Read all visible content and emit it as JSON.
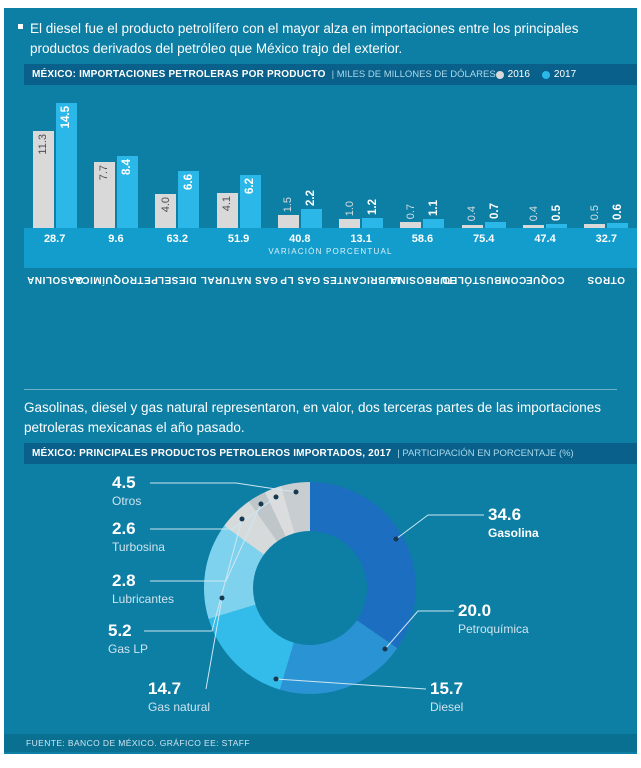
{
  "page": {
    "background": "#0d7ea4",
    "header_bar_color": "#09608a",
    "footer": "FUENTE: BANCO DE MÉXICO. GRÁFICO EE: STAFF"
  },
  "sections": [
    {
      "intro": "El diesel fue el producto petrolífero con el mayor alza en importaciones entre los principales productos derivados del petróleo que México trajo del exterior."
    },
    {
      "intro": "Gasolinas, diesel y gas natural representaron, en valor, dos terceras partes de las importaciones petroleras mexicanas el año pasado."
    }
  ],
  "chart_data": [
    {
      "type": "bar",
      "title": "MÉXICO: IMPORTACIONES PETROLERAS POR PRODUCTO",
      "units": "| MILES DE MILLONES DE DÓLARES",
      "legend_position": "top-right",
      "legend": [
        {
          "label": "2016",
          "color": "#d9d9d9"
        },
        {
          "label": "2017",
          "color": "#2bb7e8"
        }
      ],
      "categories": [
        "GASOLINA",
        "PETROQUÍMICA",
        "DIESEL",
        "GAS NATURAL",
        "GAS LP",
        "LUBRICANTES",
        "TURBOSINA",
        "COMBUSTÓLEO",
        "COQUE",
        "OTROS"
      ],
      "series": [
        {
          "name": "2016",
          "color": "#d9d9d9",
          "values": [
            11.3,
            7.7,
            4.0,
            4.1,
            1.5,
            1.0,
            0.7,
            0.4,
            0.4,
            0.5
          ],
          "labels": [
            "11.3",
            "7.7",
            "4.0",
            "4.1",
            "1.5",
            "1.0",
            "0.7",
            "0.4",
            "0.4",
            "0.5"
          ]
        },
        {
          "name": "2017",
          "color": "#2bb7e8",
          "values": [
            14.5,
            8.4,
            6.6,
            6.2,
            2.2,
            1.2,
            1.1,
            0.7,
            0.5,
            0.6
          ],
          "labels": [
            "14.5",
            "8.4",
            "6.6",
            "6.2",
            "2.2",
            "1.2",
            "1.1",
            "0.7",
            "0.5",
            "0.6"
          ]
        }
      ],
      "variation_row": {
        "caption": "VARIACIÓN PORCENTUAL",
        "values": [
          28.7,
          9.6,
          63.2,
          51.9,
          40.8,
          13.1,
          58.6,
          75.4,
          47.4,
          32.7
        ],
        "labels": [
          "28.7",
          "9.6",
          "63.2",
          "51.9",
          "40.8",
          "13.1",
          "58.6",
          "75.4",
          "47.4",
          "32.7"
        ]
      },
      "ylim": [
        0,
        15
      ],
      "grid": false
    },
    {
      "type": "pie",
      "title": "MÉXICO: PRINCIPALES PRODUCTOS PETROLEROS IMPORTADOS, 2017",
      "units": "| PARTICIPACIÓN EN PORCENTAJE (%)",
      "slices": [
        {
          "name": "Gasolina",
          "value": 34.6,
          "label": "34.6",
          "color": "#1b6ec0"
        },
        {
          "name": "Petroquímica",
          "value": 20.0,
          "label": "20.0",
          "color": "#2a93d4"
        },
        {
          "name": "Diesel",
          "value": 15.7,
          "label": "15.7",
          "color": "#33bbe9"
        },
        {
          "name": "Gas natural",
          "value": 14.7,
          "label": "14.7",
          "color": "#7fd2ee"
        },
        {
          "name": "Gas LP",
          "value": 5.2,
          "label": "5.2",
          "color": "#d7dadb"
        },
        {
          "name": "Lubricantes",
          "value": 2.8,
          "label": "2.8",
          "color": "#bfc6c9"
        },
        {
          "name": "Turbosina",
          "value": 2.6,
          "label": "2.6",
          "color": "#dadcdd"
        },
        {
          "name": "Otros",
          "value": 4.5,
          "label": "4.5",
          "color": "#c7cdd0"
        }
      ]
    }
  ]
}
